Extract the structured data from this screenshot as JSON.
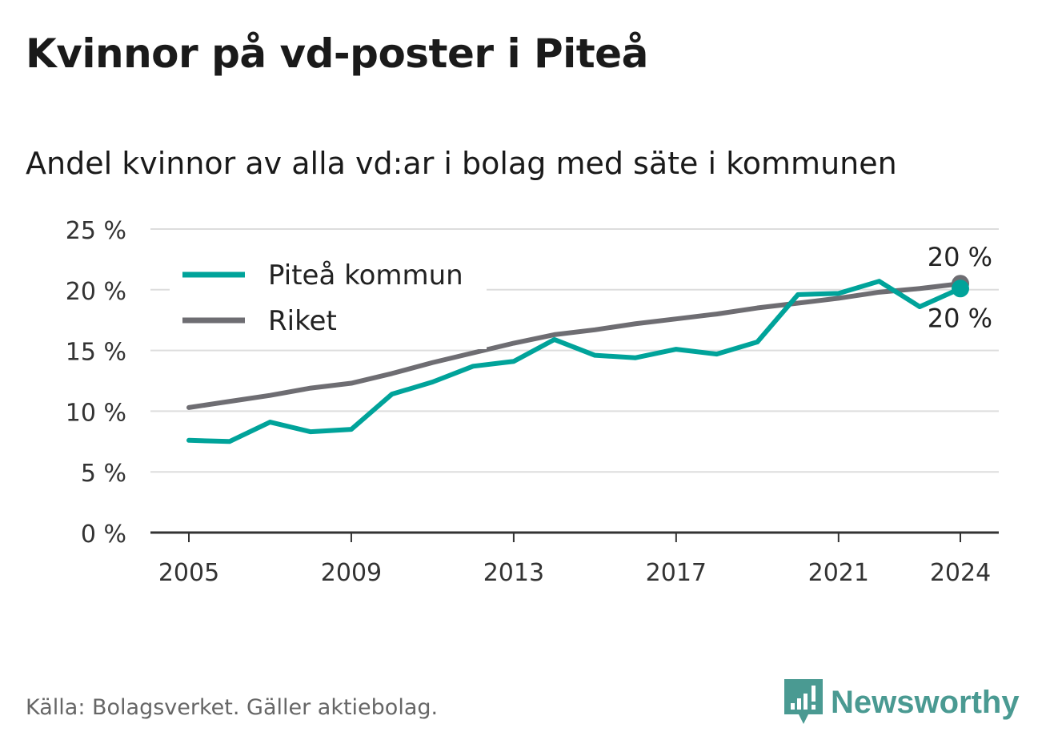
{
  "title": "Kvinnor på vd-poster i Piteå",
  "subtitle": "Andel kvinnor av alla vd:ar i bolag med säte i kommunen",
  "source": "Källa: Bolagsverket. Gäller aktiebolag.",
  "brand": {
    "name": "Newsworthy",
    "color": "#4a9a92"
  },
  "chart_data": {
    "type": "line",
    "x": [
      2005,
      2006,
      2007,
      2008,
      2009,
      2010,
      2011,
      2012,
      2013,
      2014,
      2015,
      2016,
      2017,
      2018,
      2019,
      2020,
      2021,
      2022,
      2023,
      2024
    ],
    "series": [
      {
        "name": "Piteå kommun",
        "color": "#00a39a",
        "values": [
          7.6,
          7.5,
          9.1,
          8.3,
          8.5,
          11.4,
          12.4,
          13.7,
          14.1,
          15.9,
          14.6,
          14.4,
          15.1,
          14.7,
          15.7,
          19.6,
          19.7,
          20.7,
          18.6,
          20.1
        ],
        "end_label": "20 %"
      },
      {
        "name": "Riket",
        "color": "#6e6d72",
        "values": [
          10.3,
          10.8,
          11.3,
          11.9,
          12.3,
          13.1,
          14.0,
          14.8,
          15.6,
          16.3,
          16.7,
          17.2,
          17.6,
          18.0,
          18.5,
          18.9,
          19.3,
          19.8,
          20.1,
          20.5
        ],
        "end_label": "20 %"
      }
    ],
    "xticks": [
      2005,
      2009,
      2013,
      2017,
      2021,
      2024
    ],
    "xtick_labels": [
      "2005",
      "2009",
      "2013",
      "2017",
      "2021",
      "2024"
    ],
    "yticks": [
      0,
      5,
      10,
      15,
      20,
      25
    ],
    "ytick_labels": [
      "0 %",
      "5 %",
      "10 %",
      "15 %",
      "20 %",
      "25 %"
    ],
    "ylim": [
      0,
      25
    ],
    "xlabel": "",
    "ylabel": "",
    "grid": true,
    "legend_position": "top-left",
    "colors": {
      "grid": "#dddddd",
      "axis": "#333333",
      "text": "#333333"
    }
  }
}
